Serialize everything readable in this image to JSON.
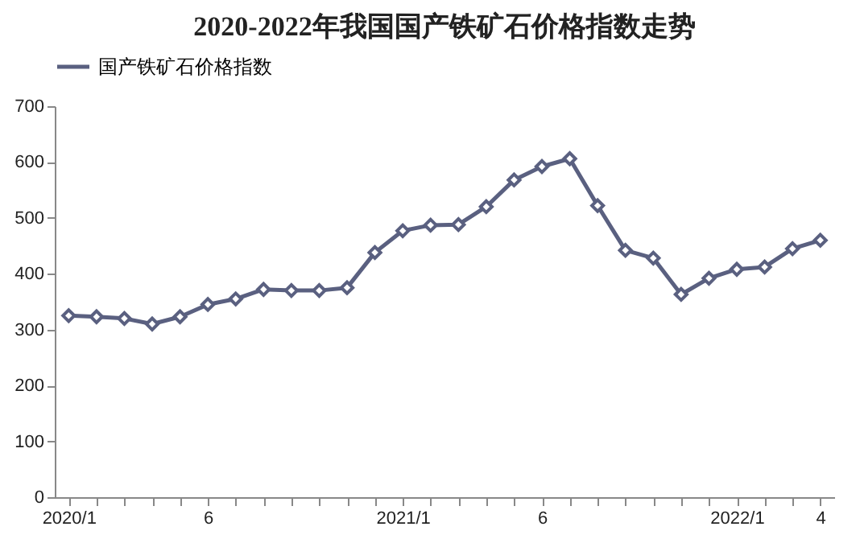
{
  "chart_data": {
    "type": "line",
    "title": "2020-2022年我国国产铁矿石价格指数走势",
    "categories": [
      "2020/1",
      null,
      null,
      null,
      null,
      "6",
      null,
      null,
      null,
      null,
      null,
      null,
      "2021/1",
      null,
      null,
      null,
      null,
      "6",
      null,
      null,
      null,
      null,
      null,
      null,
      "2022/1",
      null,
      null,
      "4"
    ],
    "series": [
      {
        "name": "国产铁矿石价格指数",
        "color": "#5a6080",
        "values": [
          325,
          323,
          320,
          310,
          323,
          345,
          355,
          372,
          370,
          370,
          375,
          438,
          477,
          487,
          488,
          520,
          568,
          592,
          606,
          522,
          442,
          428,
          363,
          392,
          408,
          412,
          445,
          460
        ]
      }
    ],
    "ylim": [
      0,
      700
    ],
    "yticks": [
      0,
      100,
      200,
      300,
      400,
      500,
      600,
      700
    ],
    "grid": false,
    "legend": "top",
    "marker": "diamond",
    "line_style": "solid"
  }
}
